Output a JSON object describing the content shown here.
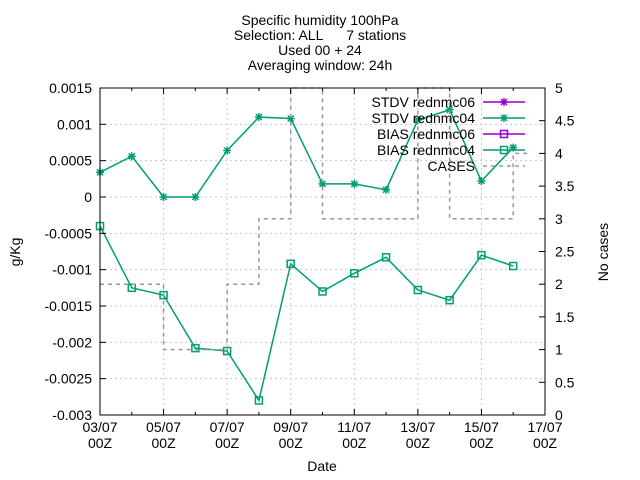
{
  "chart_data": {
    "type": "line",
    "title_lines": [
      "Specific humidity 100hPa",
      "Selection: ALL      7 stations",
      "Used 00 + 24",
      "Averaging window: 24h"
    ],
    "xlabel": "Date",
    "ylabel": "g/Kg",
    "y2label": "No cases",
    "x_ticks": [
      {
        "line1": "03/07",
        "line2": "00Z"
      },
      {
        "line1": "05/07",
        "line2": "00Z"
      },
      {
        "line1": "07/07",
        "line2": "00Z"
      },
      {
        "line1": "09/07",
        "line2": "00Z"
      },
      {
        "line1": "11/07",
        "line2": "00Z"
      },
      {
        "line1": "13/07",
        "line2": "00Z"
      },
      {
        "line1": "15/07",
        "line2": "00Z"
      },
      {
        "line1": "17/07",
        "line2": "00Z"
      }
    ],
    "xlim": [
      0,
      14
    ],
    "ylim": [
      -0.003,
      0.0015
    ],
    "y_ticks": [
      "0.0015",
      "0.001",
      "0.0005",
      "0",
      "-0.0005",
      "-0.001",
      "-0.0015",
      "-0.002",
      "-0.0025",
      "-0.003"
    ],
    "y2lim": [
      0,
      5
    ],
    "y2_ticks": [
      "5",
      "4.5",
      "4",
      "3.5",
      "3",
      "2.5",
      "2",
      "1.5",
      "1",
      "0.5",
      "0"
    ],
    "legend_position": "top-right",
    "series": [
      {
        "name": "STDV rednmc06",
        "color": "#9400d3",
        "marker": "star",
        "axis": "y",
        "x": [],
        "values": []
      },
      {
        "name": "STDV rednmc04",
        "color": "#009e73",
        "marker": "star",
        "axis": "y",
        "x": [
          0,
          1,
          2,
          3,
          4,
          5,
          6,
          7,
          8,
          9,
          10,
          11,
          12,
          13
        ],
        "values": [
          0.00034,
          0.00056,
          0.0,
          0.0,
          0.00064,
          0.0011,
          0.00108,
          0.00018,
          0.00018,
          0.0001,
          0.00106,
          0.0012,
          0.00022,
          0.00068
        ]
      },
      {
        "name": "BIAS rednmc06",
        "color": "#9400d3",
        "marker": "square",
        "axis": "y",
        "x": [],
        "values": []
      },
      {
        "name": "BIAS rednmc04",
        "color": "#009e73",
        "marker": "square",
        "axis": "y",
        "x": [
          0,
          1,
          2,
          3,
          4,
          5,
          6,
          7,
          8,
          9,
          10,
          11,
          12,
          13
        ],
        "values": [
          -0.0004,
          -0.00125,
          -0.00135,
          -0.00208,
          -0.00212,
          -0.0028,
          -0.00092,
          -0.0013,
          -0.00105,
          -0.00083,
          -0.00128,
          -0.00142,
          -0.0008,
          -0.00095
        ]
      },
      {
        "name": "CASES",
        "color": "#999999",
        "marker": "none",
        "dash": true,
        "axis": "y2",
        "x": [
          -0.5,
          0.5,
          1.5,
          2.5,
          3.5,
          4.5,
          5.5,
          6.5,
          7.5,
          8.5,
          9.5,
          10.5,
          11.5,
          12.5,
          13.5
        ],
        "values": [
          2,
          2,
          2,
          1,
          1,
          2,
          3,
          5,
          3,
          3,
          3,
          5,
          3,
          3,
          4
        ]
      }
    ]
  }
}
